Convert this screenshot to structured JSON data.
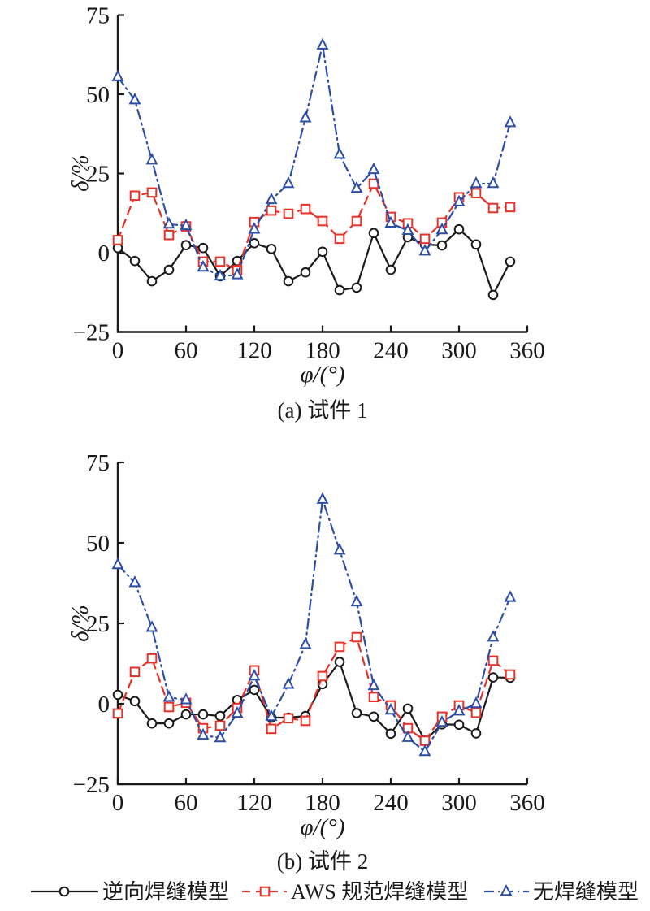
{
  "figure": {
    "y_axis_label": "δ/%",
    "x_axis_label": "φ/(°)",
    "caption_a": "(a) 试件 1",
    "caption_b": "(b) 试件 2"
  },
  "legend": {
    "items": [
      {
        "id": "reverse-weld-model",
        "label": "逆向焊缝模型",
        "color": "#1a1a1a",
        "marker": "circle",
        "line": "solid"
      },
      {
        "id": "aws-code-weld-model",
        "label": "AWS 规范焊缝模型",
        "color": "#e63129",
        "marker": "square",
        "line": "dashed"
      },
      {
        "id": "no-weld-model",
        "label": "无焊缝模型",
        "color": "#2d4da6",
        "marker": "triangle",
        "line": "dashdot"
      }
    ]
  },
  "chart_data": [
    {
      "type": "line",
      "title": "(a) 试件 1",
      "xlabel": "φ/(°)",
      "ylabel": "δ/%",
      "xlim": [
        0,
        360
      ],
      "ylim": [
        -25,
        75
      ],
      "x_ticks": [
        0,
        60,
        120,
        180,
        240,
        300,
        360
      ],
      "y_ticks": [
        75,
        50,
        25,
        0,
        -25
      ],
      "grid": false,
      "x": [
        0,
        15,
        30,
        45,
        60,
        75,
        90,
        105,
        120,
        135,
        150,
        165,
        180,
        195,
        210,
        225,
        240,
        255,
        270,
        285,
        300,
        315,
        330,
        345
      ],
      "series": [
        {
          "id": "reverse-weld-model",
          "name": "逆向焊缝模型",
          "color": "#1a1a1a",
          "marker": "circle",
          "line": "solid",
          "values": [
            1.5,
            -2.6,
            -9.0,
            -5.4,
            2.4,
            1.5,
            -7.4,
            -2.6,
            3.0,
            1.2,
            -9.0,
            -6.2,
            0.3,
            -11.8,
            -11.0,
            6.2,
            -5.4,
            4.9,
            2.6,
            2.3,
            7.4,
            2.6,
            -13.3,
            -2.8
          ]
        },
        {
          "id": "aws-code-weld-model",
          "name": "AWS 规范焊缝模型",
          "color": "#e63129",
          "marker": "square",
          "line": "dashed",
          "values": [
            4.0,
            18.0,
            19.0,
            5.6,
            8.3,
            -2.8,
            -2.8,
            -5.5,
            9.7,
            13.3,
            12.3,
            13.8,
            10.0,
            4.4,
            10.0,
            21.8,
            11.3,
            9.3,
            4.4,
            9.5,
            17.5,
            18.8,
            14.1,
            14.4
          ]
        },
        {
          "id": "no-weld-model",
          "name": "无焊缝模型",
          "color": "#2d4da6",
          "marker": "triangle",
          "line": "dashdot",
          "values": [
            55.5,
            48.2,
            29.2,
            9.0,
            8.5,
            -4.6,
            -7.4,
            -7.0,
            7.4,
            16.7,
            21.8,
            42.5,
            65.5,
            31.0,
            20.3,
            26.2,
            9.3,
            7.0,
            0.5,
            7.2,
            16.0,
            21.8,
            21.8,
            41.0
          ]
        }
      ]
    },
    {
      "type": "line",
      "title": "(b) 试件 2",
      "xlabel": "φ/(°)",
      "ylabel": "δ/%",
      "xlim": [
        0,
        360
      ],
      "ylim": [
        -25,
        75
      ],
      "x_ticks": [
        0,
        60,
        120,
        180,
        240,
        300,
        360
      ],
      "y_ticks": [
        75,
        50,
        25,
        0,
        -25
      ],
      "grid": false,
      "x": [
        0,
        15,
        30,
        45,
        60,
        75,
        90,
        105,
        120,
        135,
        150,
        165,
        180,
        195,
        210,
        225,
        240,
        255,
        270,
        285,
        300,
        315,
        330,
        345
      ],
      "series": [
        {
          "id": "reverse-weld-model",
          "name": "逆向焊缝模型",
          "color": "#1a1a1a",
          "marker": "circle",
          "line": "solid",
          "values": [
            2.8,
            0.8,
            -6.1,
            -6.1,
            -3.3,
            -3.3,
            -3.8,
            1.2,
            4.3,
            -4.3,
            -4.3,
            -3.8,
            6.1,
            13.0,
            -2.9,
            -4.0,
            -9.3,
            -1.5,
            -11.4,
            -6.4,
            -6.5,
            -9.2,
            8.2,
            8.1
          ]
        },
        {
          "id": "aws-code-weld-model",
          "name": "AWS 规范焊缝模型",
          "color": "#e63129",
          "marker": "square",
          "line": "dashed",
          "values": [
            -3.0,
            9.9,
            14.1,
            -1.0,
            0.3,
            -7.6,
            -6.8,
            -1.3,
            10.4,
            -7.8,
            -4.5,
            -5.3,
            8.6,
            17.7,
            20.7,
            2.1,
            -0.5,
            -7.6,
            -11.5,
            -4.0,
            -0.5,
            -2.8,
            13.4,
            9.1
          ]
        },
        {
          "id": "no-weld-model",
          "name": "无焊缝模型",
          "color": "#2d4da6",
          "marker": "triangle",
          "line": "dashdot",
          "values": [
            43.2,
            37.6,
            23.7,
            2.0,
            1.2,
            -9.8,
            -10.6,
            -3.0,
            8.6,
            -4.0,
            6.0,
            18.4,
            63.5,
            47.7,
            31.6,
            5.6,
            -2.0,
            -10.5,
            -14.9,
            -5.8,
            -2.3,
            0.0,
            20.7,
            33.0
          ]
        }
      ]
    }
  ]
}
